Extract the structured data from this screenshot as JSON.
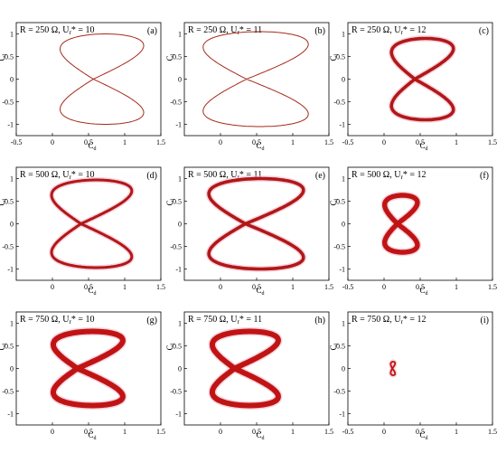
{
  "figure": {
    "panels": 9
  },
  "chart_data": [
    {
      "type": "line",
      "panel": "(a)",
      "title_parts": {
        "pre": "R = 250 Ω, U",
        "sub": "r",
        "post": "* = 10"
      },
      "xlabel": "C",
      "xlabel_sub": "d",
      "ylabel": "C",
      "ylabel_sub": "l",
      "xlim": [
        -0.5,
        1.5
      ],
      "ylim": [
        -1.25,
        1.25
      ],
      "xticks": [
        "-0.5",
        "0",
        "0.5",
        "1",
        "1.5"
      ],
      "yticks": [
        "1",
        "0.5",
        "0",
        "-0.5",
        "-1"
      ],
      "curve": {
        "xc": 0.65,
        "width": 1.15,
        "amp": 1.0,
        "tilt": 0.28,
        "thickness": 0.01
      },
      "color": "#a52a1a"
    },
    {
      "type": "line",
      "panel": "(b)",
      "title_parts": {
        "pre": "R = 250 Ω, U",
        "sub": "r",
        "post": "* = 11"
      },
      "xlabel": "C",
      "xlabel_sub": "d",
      "ylabel": "C",
      "ylabel_sub": "l",
      "xlim": [
        -0.5,
        1.5
      ],
      "ylim": [
        -1.25,
        1.25
      ],
      "xticks": [
        "0",
        "0.5",
        "1",
        "1.5"
      ],
      "yticks": [
        "1",
        "0.5",
        "0",
        "-0.5",
        "-1"
      ],
      "curve": {
        "xc": 0.45,
        "width": 1.45,
        "amp": 1.05,
        "tilt": 0.3,
        "thickness": 0.01
      },
      "color": "#a52a1a"
    },
    {
      "type": "line",
      "panel": "(c)",
      "title_parts": {
        "pre": "R = 250 Ω, U",
        "sub": "r",
        "post": "* = 12"
      },
      "xlabel": "C",
      "xlabel_sub": "d",
      "ylabel": "C",
      "ylabel_sub": "l",
      "xlim": [
        -0.5,
        1.5
      ],
      "ylim": [
        -1.25,
        1.25
      ],
      "xticks": [
        "-0.5",
        "0",
        "0.5",
        "1",
        "1.5"
      ],
      "yticks": [
        "1",
        "0.5",
        "0",
        "-0.5",
        "-1"
      ],
      "curve": {
        "xc": 0.5,
        "width": 0.85,
        "amp": 0.9,
        "tilt": 0.25,
        "thickness": 0.06
      },
      "color": "#b01818"
    },
    {
      "type": "line",
      "panel": "(d)",
      "title_parts": {
        "pre": "R = 500 Ω, U",
        "sub": "r",
        "post": "* = 10"
      },
      "xlabel": "C",
      "xlabel_sub": "d",
      "ylabel": "C",
      "ylabel_sub": "l",
      "xlim": [
        -0.5,
        1.5
      ],
      "ylim": [
        -1.25,
        1.25
      ],
      "xticks": [
        "0",
        "0.5",
        "1",
        "1.5"
      ],
      "yticks": [
        "1",
        "0.5",
        "0",
        "-0.5",
        "-1"
      ],
      "curve": {
        "xc": 0.5,
        "width": 1.1,
        "amp": 0.97,
        "tilt": 0.35,
        "thickness": 0.05
      },
      "color": "#b01818"
    },
    {
      "type": "line",
      "panel": "(e)",
      "title_parts": {
        "pre": "R = 500 Ω, U",
        "sub": "r",
        "post": "* = 11"
      },
      "xlabel": "C",
      "xlabel_sub": "d",
      "ylabel": "C",
      "ylabel_sub": "l",
      "xlim": [
        -0.5,
        1.5
      ],
      "ylim": [
        -1.25,
        1.25
      ],
      "xticks": [
        "0",
        "0.5",
        "1",
        "1.5"
      ],
      "yticks": [
        "1",
        "0.5",
        "0",
        "-0.5",
        "-1"
      ],
      "curve": {
        "xc": 0.45,
        "width": 1.3,
        "amp": 1.0,
        "tilt": 0.35,
        "thickness": 0.06
      },
      "color": "#b01818"
    },
    {
      "type": "line",
      "panel": "(f)",
      "title_parts": {
        "pre": "R = 500 Ω, U",
        "sub": "r",
        "post": "* = 12"
      },
      "xlabel": "C",
      "xlabel_sub": "d",
      "ylabel": "C",
      "ylabel_sub": "l",
      "xlim": [
        -0.5,
        1.5
      ],
      "ylim": [
        -1.25,
        1.25
      ],
      "xticks": [
        "-0.5",
        "0",
        "0.5",
        "1",
        "1.5"
      ],
      "yticks": [
        "1",
        "0.5",
        "0",
        "-0.5",
        "-1"
      ],
      "curve": {
        "xc": 0.22,
        "width": 0.45,
        "amp": 0.63,
        "tilt": 0.12,
        "thickness": 0.09
      },
      "color": "#c01414"
    },
    {
      "type": "line",
      "panel": "(g)",
      "title_parts": {
        "pre": "R = 750 Ω, U",
        "sub": "r",
        "post": "* = 10"
      },
      "xlabel": "C",
      "xlabel_sub": "d",
      "ylabel": "C",
      "ylabel_sub": "l",
      "xlim": [
        -0.5,
        1.5
      ],
      "ylim": [
        -1.25,
        1.25
      ],
      "xticks": [
        "0",
        "0.5",
        "1",
        "1.5"
      ],
      "yticks": [
        "1",
        "0.5",
        "0",
        "-0.5",
        "-1"
      ],
      "curve": {
        "xc": 0.45,
        "width": 0.95,
        "amp": 0.82,
        "tilt": 0.35,
        "thickness": 0.1
      },
      "color": "#c01414"
    },
    {
      "type": "line",
      "panel": "(h)",
      "title_parts": {
        "pre": "R = 750 Ω, U",
        "sub": "r",
        "post": "* = 11"
      },
      "xlabel": "C",
      "xlabel_sub": "d",
      "ylabel": "C",
      "ylabel_sub": "l",
      "xlim": [
        -0.5,
        1.5
      ],
      "ylim": [
        -1.25,
        1.25
      ],
      "xticks": [
        "0",
        "0.5",
        "1",
        "1.5"
      ],
      "yticks": [
        "1",
        "0.5",
        "0",
        "-0.5",
        "-1"
      ],
      "curve": {
        "xc": 0.3,
        "width": 0.9,
        "amp": 0.82,
        "tilt": 0.35,
        "thickness": 0.1
      },
      "color": "#c01414"
    },
    {
      "type": "line",
      "panel": "(i)",
      "title_parts": {
        "pre": "R = 750 Ω, U",
        "sub": "r",
        "post": "* = 12"
      },
      "xlabel": "C",
      "xlabel_sub": "d",
      "ylabel": "C",
      "ylabel_sub": "l",
      "xlim": [
        -0.5,
        1.5
      ],
      "ylim": [
        -1.25,
        1.25
      ],
      "xticks": [
        "-0.5",
        "0",
        "0.5",
        "1",
        "1.5"
      ],
      "yticks": [
        "1",
        "0.5",
        "0",
        "-0.5",
        "-1"
      ],
      "curve": {
        "xc": 0.12,
        "width": 0.06,
        "amp": 0.15,
        "tilt": 0.02,
        "thickness": 0.03
      },
      "color": "#c01414"
    }
  ]
}
